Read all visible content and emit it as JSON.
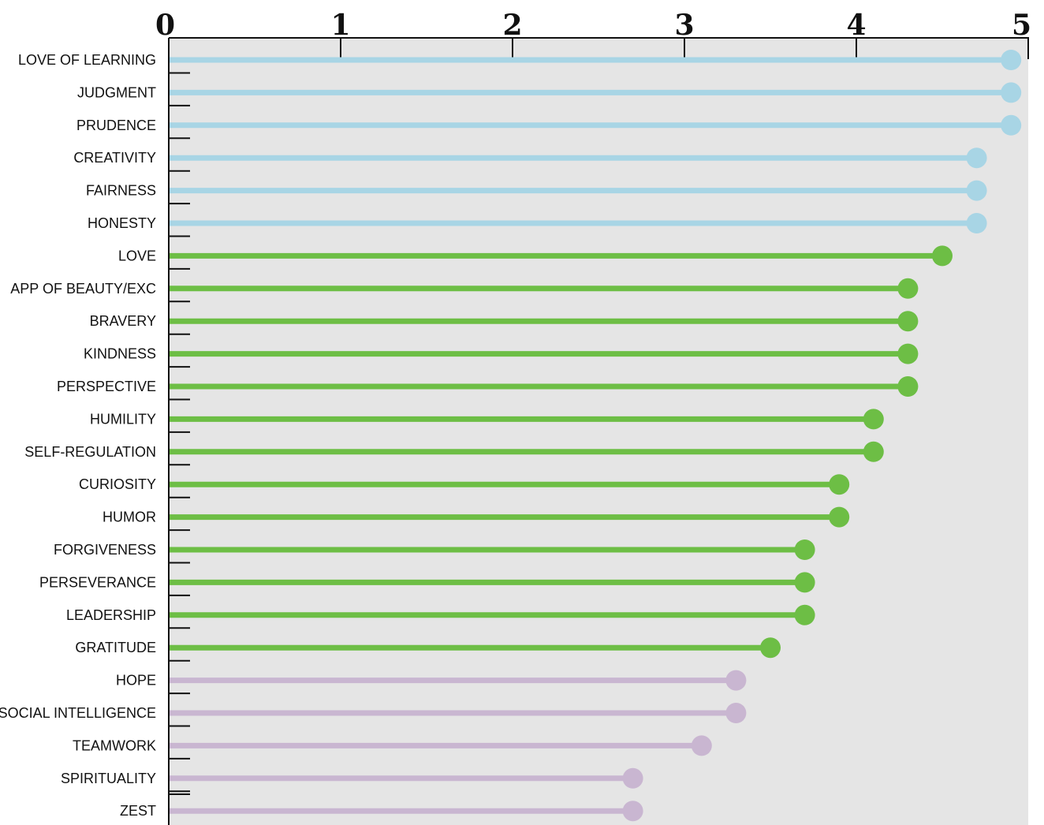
{
  "chart_data": {
    "type": "lollipop",
    "title": "",
    "xlabel": "",
    "ylabel": "",
    "xlim": [
      0,
      5
    ],
    "x_ticks": [
      0,
      1,
      2,
      3,
      4,
      5
    ],
    "x_tick_labels": [
      "0",
      "1",
      "2",
      "3",
      "4",
      "5"
    ],
    "orientation": "horizontal",
    "grid": false,
    "background": "#e5e5e5",
    "legend": "none",
    "colors": {
      "blue": "#a8d5e5",
      "green": "#6dbe45",
      "purple": "#c9b6d1"
    },
    "categories": [
      "LOVE OF LEARNING",
      "JUDGMENT",
      "PRUDENCE",
      "CREATIVITY",
      "FAIRNESS",
      "HONESTY",
      "LOVE",
      "APP OF BEAUTY/EXC",
      "BRAVERY",
      "KINDNESS",
      "PERSPECTIVE",
      "HUMILITY",
      "SELF-REGULATION",
      "CURIOSITY",
      "HUMOR",
      "FORGIVENESS",
      "PERSEVERANCE",
      "LEADERSHIP",
      "GRATITUDE",
      "HOPE",
      "SOCIAL INTELLIGENCE",
      "TEAMWORK",
      "SPIRITUALITY",
      "ZEST"
    ],
    "values": [
      4.9,
      4.9,
      4.9,
      4.7,
      4.7,
      4.7,
      4.5,
      4.3,
      4.3,
      4.3,
      4.3,
      4.1,
      4.1,
      3.9,
      3.9,
      3.7,
      3.7,
      3.7,
      3.5,
      3.3,
      3.3,
      3.1,
      2.7,
      2.7
    ],
    "color_groups": [
      "blue",
      "blue",
      "blue",
      "blue",
      "blue",
      "blue",
      "green",
      "green",
      "green",
      "green",
      "green",
      "green",
      "green",
      "green",
      "green",
      "green",
      "green",
      "green",
      "green",
      "purple",
      "purple",
      "purple",
      "purple",
      "purple"
    ]
  }
}
